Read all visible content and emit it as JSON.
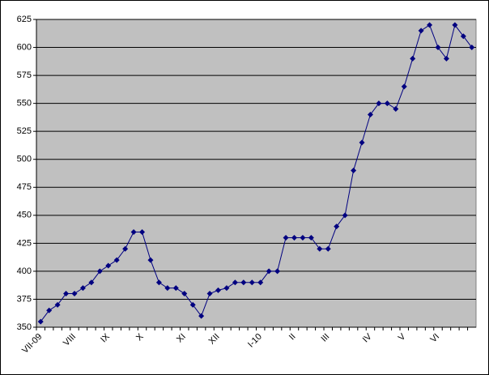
{
  "chart_data": {
    "type": "line",
    "categories": [
      "VII-09",
      null,
      null,
      null,
      "VIII",
      null,
      null,
      null,
      "IX",
      null,
      null,
      null,
      "X",
      null,
      null,
      null,
      null,
      "XI",
      null,
      null,
      null,
      "XII",
      null,
      null,
      null,
      null,
      "I-10",
      null,
      null,
      null,
      "II",
      null,
      null,
      null,
      "III",
      null,
      null,
      null,
      null,
      "IV",
      null,
      null,
      null,
      "V",
      null,
      null,
      null,
      "VI",
      null,
      null,
      null,
      null
    ],
    "values": [
      355,
      365,
      370,
      380,
      380,
      385,
      390,
      400,
      405,
      410,
      420,
      435,
      435,
      410,
      390,
      385,
      385,
      380,
      370,
      360,
      380,
      383,
      385,
      390,
      390,
      390,
      390,
      400,
      400,
      430,
      430,
      430,
      430,
      420,
      420,
      440,
      450,
      490,
      515,
      540,
      550,
      550,
      545,
      565,
      590,
      615,
      620,
      600,
      590,
      620,
      610,
      600
    ],
    "color": "#000080",
    "ylim": [
      350,
      625
    ],
    "yticks": [
      350,
      375,
      400,
      425,
      450,
      475,
      500,
      525,
      550,
      575,
      600,
      625
    ],
    "grid": true
  }
}
